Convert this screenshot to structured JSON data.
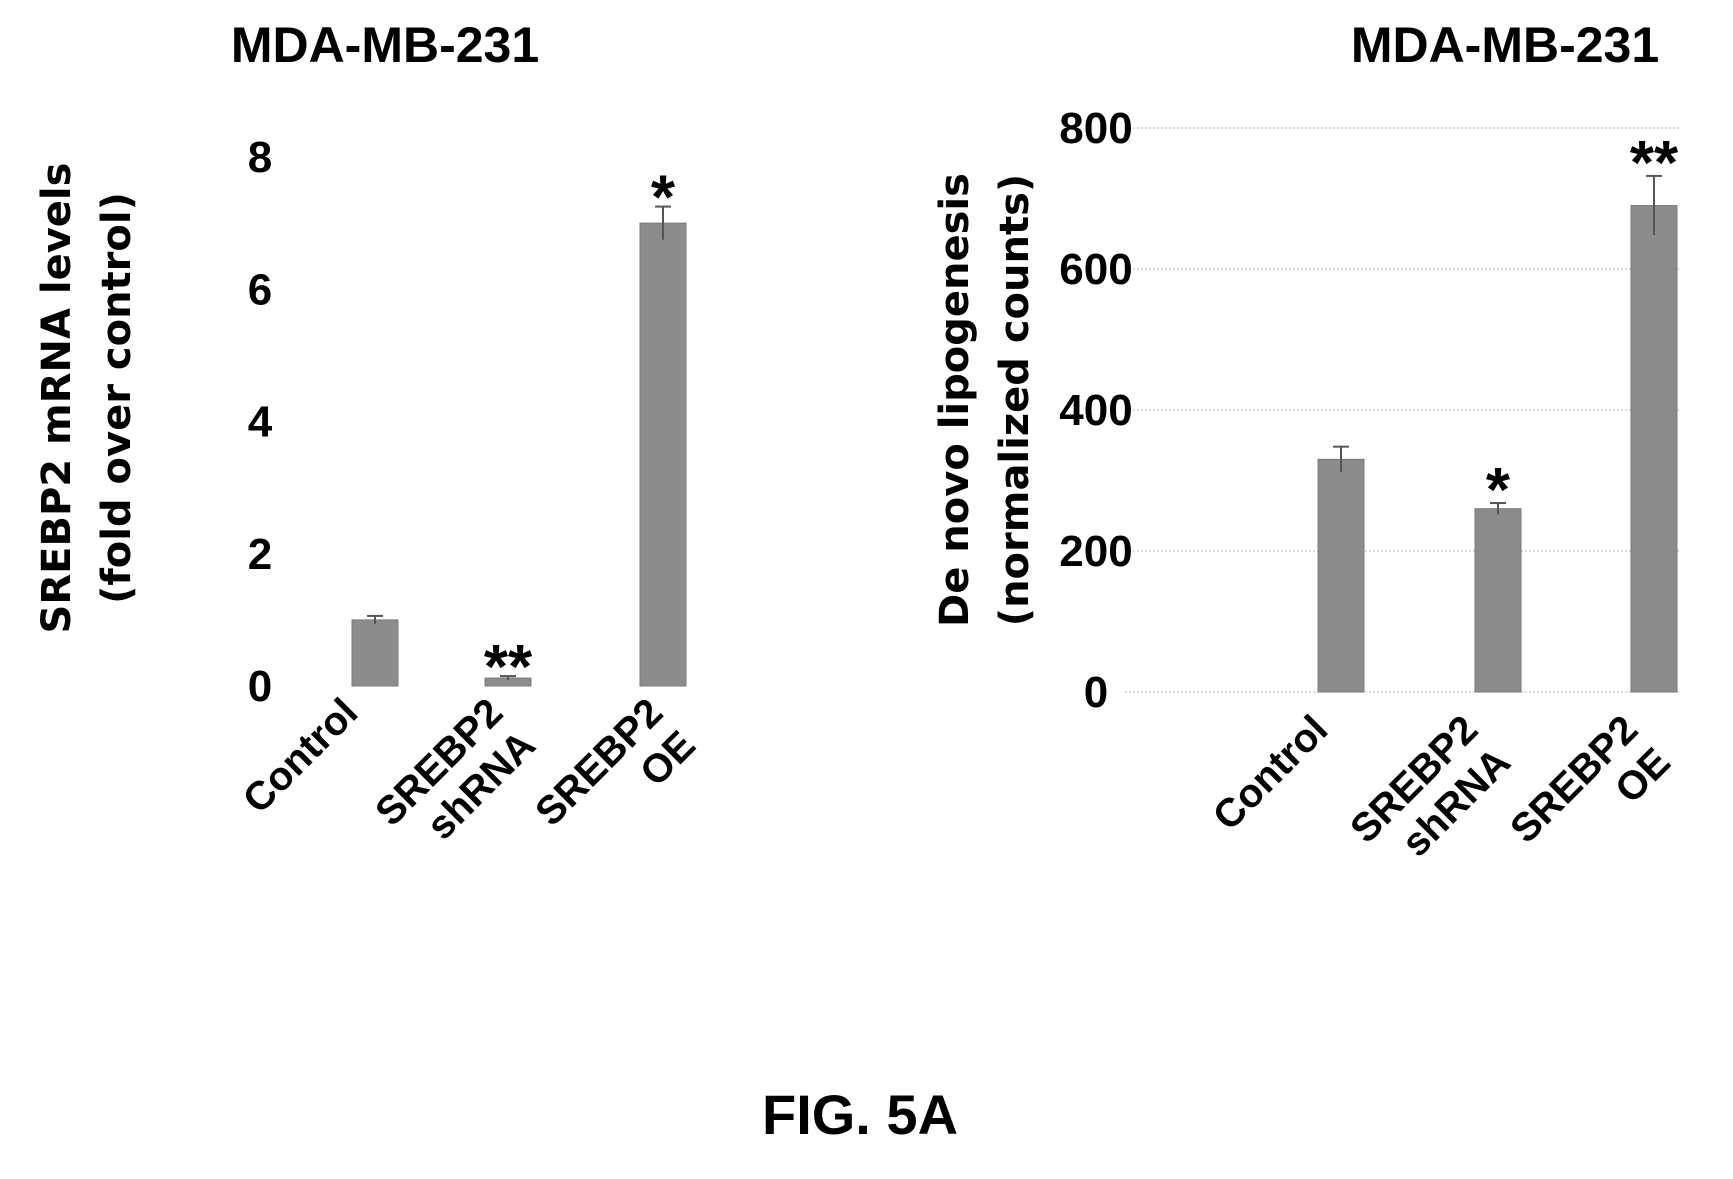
{
  "caption": "FIG. 5A",
  "chart_data": [
    {
      "type": "bar",
      "title": "MDA-MB-231",
      "ylabel_lines": [
        "SREBP2 mRNA levels",
        "(fold over control)"
      ],
      "categories": [
        [
          "Control"
        ],
        [
          "SREBP2",
          "shRNA"
        ],
        [
          "SREBP2",
          "OE"
        ]
      ],
      "values": [
        1.0,
        0.12,
        7.0
      ],
      "errors": [
        0.06,
        0.03,
        0.25
      ],
      "significance": [
        "",
        "**",
        "*"
      ],
      "yticks": [
        0,
        2,
        4,
        6,
        8
      ],
      "ylim": [
        0,
        8
      ],
      "grid": false
    },
    {
      "type": "bar",
      "title": "MDA-MB-231",
      "ylabel_lines": [
        "De novo lipogenesis",
        "(normalized counts)"
      ],
      "categories": [
        [
          "Control"
        ],
        [
          "SREBP2",
          "shRNA"
        ],
        [
          "SREBP2",
          "OE"
        ]
      ],
      "values": [
        330,
        260,
        690
      ],
      "errors": [
        18,
        8,
        42
      ],
      "significance": [
        "",
        "*",
        "**"
      ],
      "yticks": [
        0,
        200,
        400,
        600,
        800
      ],
      "ylim": [
        0,
        800
      ],
      "grid": true
    }
  ]
}
